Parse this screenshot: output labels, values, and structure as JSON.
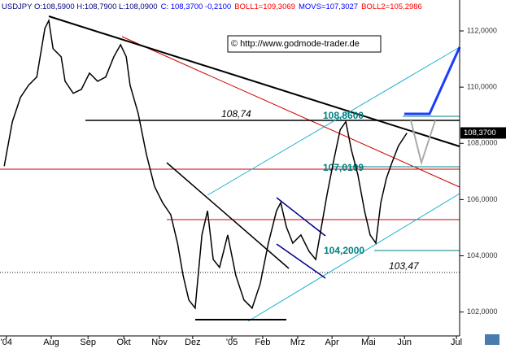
{
  "chart_data": {
    "type": "line",
    "header": [
      {
        "text": "USDJPY O:108,5900 H:108,7900 L:108,0900",
        "color": "#000080"
      },
      {
        "text": "C: 108,3700 -0,2100",
        "color": "#0000ff"
      },
      {
        "text": "BOLL1=109,3069",
        "color": "#ff0000"
      },
      {
        "text": "MOVS=107,3027",
        "color": "#0000ff"
      },
      {
        "text": "BOLL2=105,2986",
        "color": "#ff0000"
      }
    ],
    "copyright": "© http://www.godmode-trader.de",
    "last_price": {
      "value": 108.37,
      "label": "108,3700"
    },
    "annotations": [
      "108,74",
      "108,8600",
      "107,0109",
      "104,2000",
      "103,47"
    ],
    "x": [
      1.2,
      3.5,
      5.8,
      8.1,
      10.4,
      12.7,
      13.8,
      15.0,
      17.3,
      18.4,
      20.7,
      23.0,
      25.3,
      27.6,
      29.9,
      32.2,
      34.1,
      35.7,
      36.8,
      39.1,
      41.4,
      43.7,
      46.0,
      48.3,
      50.2,
      51.8,
      53.4,
      55.2,
      57.1,
      58.7,
      60.3,
      62.1,
      64.4,
      66.7,
      69.0,
      71.3,
      73.6,
      75.9,
      78.2,
      79.4,
      81.0,
      82.8,
      85.1,
      87.4,
      89.3,
      90.9,
      92.5,
      94.3,
      96.2,
      97.8,
      99.4,
      101.2,
      103.1,
      104.7,
      106.3,
      107.7,
      109.3,
      110.9,
      112.7,
      115.1
    ],
    "series": [
      {
        "color": "#000000",
        "values": [
          107.19,
          108.77,
          109.64,
          110.07,
          110.36,
          112.09,
          112.37,
          111.37,
          111.08,
          110.21,
          109.78,
          109.92,
          110.5,
          110.21,
          110.36,
          111.08,
          111.51,
          111.08,
          110.07,
          109.06,
          107.62,
          106.47,
          105.89,
          105.46,
          104.45,
          103.3,
          102.43,
          102.14,
          104.74,
          105.6,
          103.87,
          103.59,
          104.74,
          103.3,
          102.43,
          102.14,
          103.01,
          104.45,
          105.6,
          105.89,
          105.03,
          104.45,
          104.74,
          104.16,
          103.87,
          105.03,
          106.18,
          107.33,
          108.48,
          108.77,
          107.76,
          106.9,
          105.6,
          104.74,
          104.45,
          105.89,
          106.76,
          107.33,
          107.91,
          108.37
        ]
      }
    ],
    "xlim": [
      0,
      130
    ],
    "xticks": [
      {
        "value": 1.8,
        "label": "'04"
      },
      {
        "value": 14.5,
        "label": "Aug"
      },
      {
        "value": 24.9,
        "label": "Sep"
      },
      {
        "value": 35.0,
        "label": "Okt"
      },
      {
        "value": 45.1,
        "label": "Nov"
      },
      {
        "value": 54.5,
        "label": "Dez"
      },
      {
        "value": 65.6,
        "label": "'05"
      },
      {
        "value": 74.3,
        "label": "Feb"
      },
      {
        "value": 84.2,
        "label": "Mrz"
      },
      {
        "value": 93.9,
        "label": "Apr"
      },
      {
        "value": 104.2,
        "label": "Mai"
      },
      {
        "value": 114.4,
        "label": "Jun"
      },
      {
        "value": 129.1,
        "label": "Jul"
      }
    ],
    "ylim": [
      101.15,
      113.1
    ],
    "yticks": [
      {
        "value": 102,
        "label": "102,0000"
      },
      {
        "value": 104,
        "label": "104,0000"
      },
      {
        "value": 106,
        "label": "106,0000"
      },
      {
        "value": 108,
        "label": "108,0000"
      },
      {
        "value": 110,
        "label": "110,0000"
      },
      {
        "value": 112,
        "label": "112,0000"
      }
    ]
  }
}
